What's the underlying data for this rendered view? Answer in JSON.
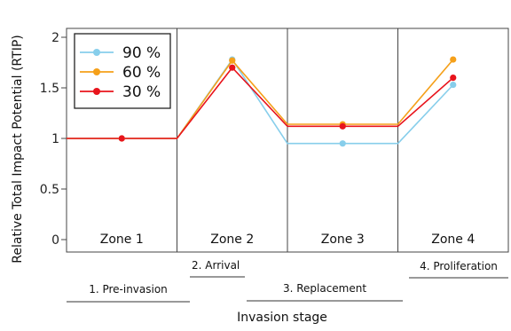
{
  "chart_data": {
    "type": "line",
    "ylabel": "Relative Total Impact Potential (RTIP)",
    "xlabel": "Invasion stage",
    "ylim": [
      0,
      2
    ],
    "yticks": [
      0,
      0.5,
      1,
      1.5,
      2
    ],
    "ytick_labels": [
      "0",
      "0.5",
      "1",
      "1.5",
      "2"
    ],
    "zones": [
      "Zone 1",
      "Zone 2",
      "Zone 3",
      "Zone 4"
    ],
    "stages": [
      "1. Pre-invasion",
      "2. Arrival",
      "3. Replacement",
      "4. Proliferation"
    ],
    "legend_position": "top-left",
    "series": [
      {
        "name": "90 %",
        "color": "#87ceeb",
        "line": [
          [
            0,
            1.0
          ],
          [
            1,
            1.0
          ],
          [
            1.5,
            1.78
          ],
          [
            2,
            0.95
          ],
          [
            3,
            0.95
          ],
          [
            3.5,
            1.53
          ]
        ],
        "markers": [
          [
            0.5,
            1.0
          ],
          [
            1.5,
            1.78
          ],
          [
            2.5,
            0.95
          ],
          [
            3.5,
            1.53
          ]
        ]
      },
      {
        "name": "60 %",
        "color": "#f5a01a",
        "line": [
          [
            0,
            1.0
          ],
          [
            1,
            1.0
          ],
          [
            1.5,
            1.77
          ],
          [
            2,
            1.14
          ],
          [
            3,
            1.14
          ],
          [
            3.5,
            1.78
          ]
        ],
        "markers": [
          [
            0.5,
            1.0
          ],
          [
            1.5,
            1.77
          ],
          [
            2.5,
            1.14
          ],
          [
            3.5,
            1.78
          ]
        ]
      },
      {
        "name": "30 %",
        "color": "#e8141c",
        "line": [
          [
            0,
            1.0
          ],
          [
            1,
            1.0
          ],
          [
            1.5,
            1.7
          ],
          [
            2,
            1.12
          ],
          [
            3,
            1.12
          ],
          [
            3.5,
            1.6
          ]
        ],
        "markers": [
          [
            0.5,
            1.0
          ],
          [
            1.5,
            1.7
          ],
          [
            2.5,
            1.12
          ],
          [
            3.5,
            1.6
          ]
        ]
      }
    ]
  }
}
